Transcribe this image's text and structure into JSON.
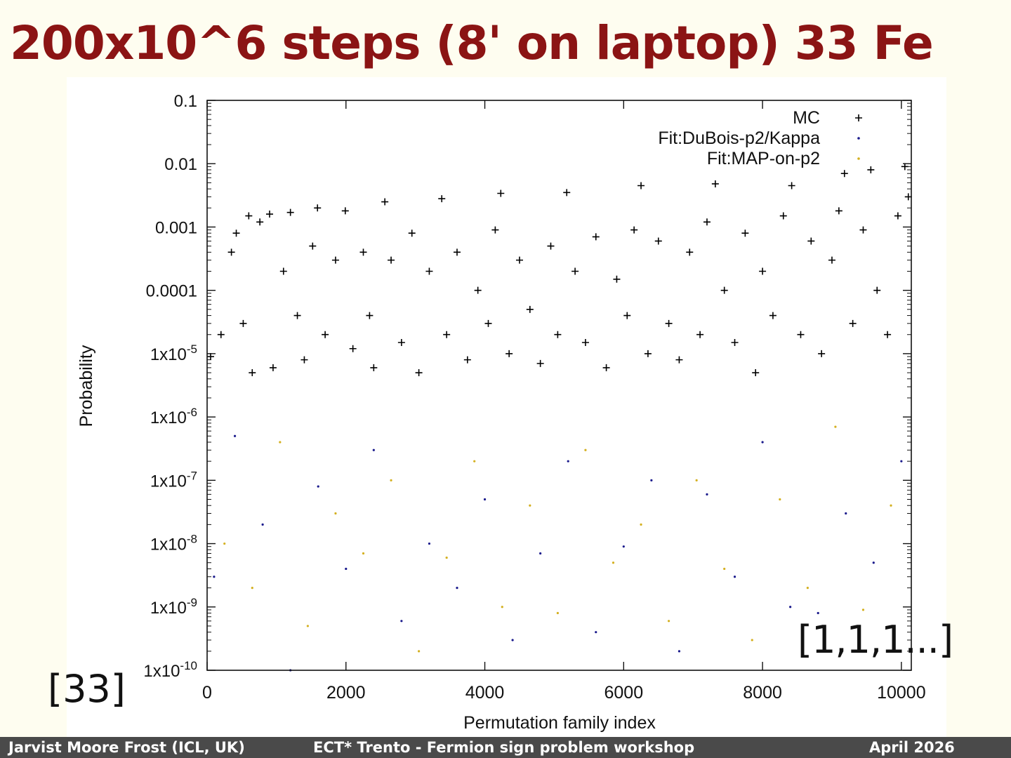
{
  "slide": {
    "title": "200x10^6 steps (8' on laptop) 33 Fe"
  },
  "refs": {
    "left": "[33]",
    "right": "[1,1,1...]"
  },
  "footer": {
    "author": "Jarvist Moore Frost  (ICL, UK)",
    "event": "ECT* Trento - Fermion sign problem workshop",
    "date": "April  2026"
  },
  "colors": {
    "title": "#8b1414",
    "footer_bg": "#4a4a4a",
    "mc": "#000000",
    "fit_dubois": "#1a1a8c",
    "fit_map": "#d4b020"
  },
  "chart_data": {
    "type": "scatter",
    "title": "",
    "xlabel": "Permutation family index",
    "ylabel": "Probability",
    "xlim": [
      0,
      10143
    ],
    "ylim": [
      1e-10,
      0.1
    ],
    "yscale": "log",
    "grid": false,
    "legend_position": "top-right",
    "x_ticks": [
      {
        "value": 0,
        "label": "0"
      },
      {
        "value": 2000,
        "label": "2000"
      },
      {
        "value": 4000,
        "label": "4000"
      },
      {
        "value": 6000,
        "label": "6000"
      },
      {
        "value": 8000,
        "label": "8000"
      },
      {
        "value": 10000,
        "label": "10000"
      }
    ],
    "y_ticks": [
      {
        "value": 0.1,
        "label": "0.1",
        "base": "",
        "exp": ""
      },
      {
        "value": 0.01,
        "label": "0.01",
        "base": "",
        "exp": ""
      },
      {
        "value": 0.001,
        "label": "0.001",
        "base": "",
        "exp": ""
      },
      {
        "value": 0.0001,
        "label": "0.0001",
        "base": "",
        "exp": ""
      },
      {
        "value": 1e-05,
        "label": "",
        "base": "1x10",
        "exp": "-5"
      },
      {
        "value": 1e-06,
        "label": "",
        "base": "1x10",
        "exp": "-6"
      },
      {
        "value": 1e-07,
        "label": "",
        "base": "1x10",
        "exp": "-7"
      },
      {
        "value": 1e-08,
        "label": "",
        "base": "1x10",
        "exp": "-8"
      },
      {
        "value": 1e-09,
        "label": "",
        "base": "1x10",
        "exp": "-9"
      },
      {
        "value": 1e-10,
        "label": "",
        "base": "1x10",
        "exp": "-10"
      }
    ],
    "series": [
      {
        "name": "MC",
        "marker": "plus",
        "color": "#000000",
        "points": [
          [
            50,
            9e-06
          ],
          [
            200,
            2e-05
          ],
          [
            350,
            0.0004
          ],
          [
            420,
            0.0008
          ],
          [
            520,
            3e-05
          ],
          [
            600,
            0.0015
          ],
          [
            650,
            5e-06
          ],
          [
            760,
            0.0012
          ],
          [
            900,
            0.0016
          ],
          [
            950,
            6e-06
          ],
          [
            1100,
            0.0002
          ],
          [
            1200,
            0.0017
          ],
          [
            1300,
            4e-05
          ],
          [
            1400,
            8e-06
          ],
          [
            1520,
            0.0005
          ],
          [
            1590,
            0.002
          ],
          [
            1700,
            2e-05
          ],
          [
            1850,
            0.0003
          ],
          [
            1990,
            0.0018
          ],
          [
            2100,
            1.2e-05
          ],
          [
            2250,
            0.0004
          ],
          [
            2340,
            4e-05
          ],
          [
            2400,
            6e-06
          ],
          [
            2560,
            0.0025
          ],
          [
            2650,
            0.0003
          ],
          [
            2800,
            1.5e-05
          ],
          [
            2950,
            0.0008
          ],
          [
            3050,
            5e-06
          ],
          [
            3200,
            0.0002
          ],
          [
            3380,
            0.0028
          ],
          [
            3450,
            2e-05
          ],
          [
            3600,
            0.0004
          ],
          [
            3750,
            8e-06
          ],
          [
            3900,
            0.0001
          ],
          [
            4050,
            3e-05
          ],
          [
            4150,
            0.0009
          ],
          [
            4230,
            0.0034
          ],
          [
            4350,
            1e-05
          ],
          [
            4500,
            0.0003
          ],
          [
            4650,
            5e-05
          ],
          [
            4800,
            7e-06
          ],
          [
            4950,
            0.0005
          ],
          [
            5050,
            2e-05
          ],
          [
            5180,
            0.0035
          ],
          [
            5300,
            0.0002
          ],
          [
            5450,
            1.5e-05
          ],
          [
            5600,
            0.0007
          ],
          [
            5750,
            6e-06
          ],
          [
            5900,
            0.00015
          ],
          [
            6050,
            4e-05
          ],
          [
            6150,
            0.0009
          ],
          [
            6250,
            0.0045
          ],
          [
            6350,
            1e-05
          ],
          [
            6500,
            0.0006
          ],
          [
            6650,
            3e-05
          ],
          [
            6800,
            8e-06
          ],
          [
            6950,
            0.0004
          ],
          [
            7100,
            2e-05
          ],
          [
            7200,
            0.0012
          ],
          [
            7320,
            0.0048
          ],
          [
            7450,
            0.0001
          ],
          [
            7600,
            1.5e-05
          ],
          [
            7750,
            0.0008
          ],
          [
            7900,
            5e-06
          ],
          [
            8000,
            0.0002
          ],
          [
            8150,
            4e-05
          ],
          [
            8300,
            0.0015
          ],
          [
            8420,
            0.0045
          ],
          [
            8550,
            2e-05
          ],
          [
            8700,
            0.0006
          ],
          [
            8850,
            1e-05
          ],
          [
            9000,
            0.0003
          ],
          [
            9100,
            0.0018
          ],
          [
            9180,
            0.007
          ],
          [
            9300,
            3e-05
          ],
          [
            9450,
            0.0009
          ],
          [
            9560,
            0.008
          ],
          [
            9650,
            0.0001
          ],
          [
            9800,
            2e-05
          ],
          [
            9950,
            0.0015
          ],
          [
            10050,
            0.009
          ],
          [
            10100,
            0.003
          ]
        ]
      },
      {
        "name": "Fit:DuBois-p2/Kappa",
        "marker": "dot",
        "color": "#1a1a8c",
        "points": [
          [
            100,
            3e-09
          ],
          [
            400,
            5e-07
          ],
          [
            800,
            2e-08
          ],
          [
            1200,
            1e-10
          ],
          [
            1600,
            8e-08
          ],
          [
            2000,
            4e-09
          ],
          [
            2400,
            3e-07
          ],
          [
            2800,
            6e-10
          ],
          [
            3200,
            1e-08
          ],
          [
            3600,
            2e-09
          ],
          [
            4000,
            5e-08
          ],
          [
            4400,
            3e-10
          ],
          [
            4800,
            7e-09
          ],
          [
            5200,
            2e-07
          ],
          [
            5600,
            4e-10
          ],
          [
            6000,
            9e-09
          ],
          [
            6400,
            1e-07
          ],
          [
            6800,
            2e-10
          ],
          [
            7200,
            6e-08
          ],
          [
            7600,
            3e-09
          ],
          [
            8000,
            4e-07
          ],
          [
            8400,
            1e-09
          ],
          [
            8800,
            8e-10
          ],
          [
            9200,
            3e-08
          ],
          [
            9600,
            5e-09
          ],
          [
            10000,
            2e-07
          ]
        ]
      },
      {
        "name": "Fit:MAP-on-p2",
        "marker": "dot",
        "color": "#d4b020",
        "points": [
          [
            250,
            1e-08
          ],
          [
            650,
            2e-09
          ],
          [
            1050,
            4e-07
          ],
          [
            1450,
            5e-10
          ],
          [
            1850,
            3e-08
          ],
          [
            2250,
            7e-09
          ],
          [
            2650,
            1e-07
          ],
          [
            3050,
            2e-10
          ],
          [
            3450,
            6e-09
          ],
          [
            3850,
            2e-07
          ],
          [
            4250,
            1e-09
          ],
          [
            4650,
            4e-08
          ],
          [
            5050,
            8e-10
          ],
          [
            5450,
            3e-07
          ],
          [
            5850,
            5e-09
          ],
          [
            6250,
            2e-08
          ],
          [
            6650,
            6e-10
          ],
          [
            7050,
            1e-07
          ],
          [
            7450,
            4e-09
          ],
          [
            7850,
            3e-10
          ],
          [
            8250,
            5e-08
          ],
          [
            8650,
            2e-09
          ],
          [
            9050,
            7e-07
          ],
          [
            9450,
            9e-10
          ],
          [
            9850,
            4e-08
          ]
        ]
      }
    ]
  }
}
